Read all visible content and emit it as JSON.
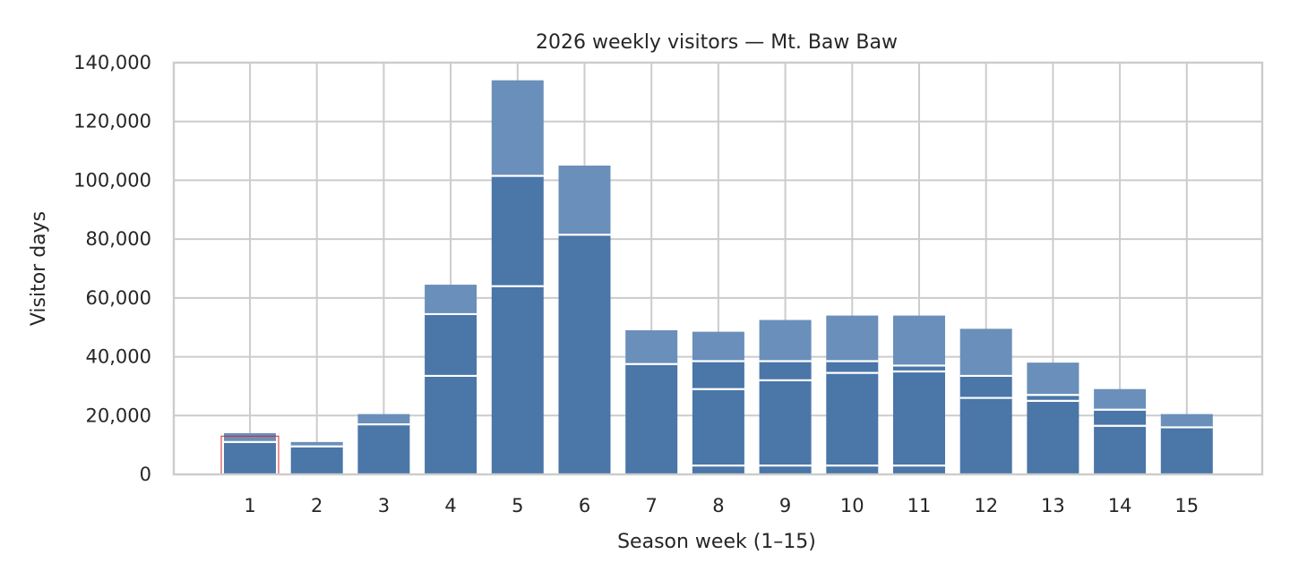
{
  "chart_data": {
    "type": "bar",
    "title": "2026 weekly visitors — Mt. Baw Baw",
    "xlabel": "Season week (1–15)",
    "ylabel": "Visitor days",
    "categories": [
      "1",
      "2",
      "3",
      "4",
      "5",
      "6",
      "7",
      "8",
      "9",
      "10",
      "11",
      "12",
      "13",
      "14",
      "15"
    ],
    "values": [
      14000,
      11000,
      20500,
      64500,
      134000,
      105000,
      49000,
      48500,
      52500,
      54000,
      54000,
      49500,
      38000,
      29000,
      20500
    ],
    "segment_boundaries": [
      [
        11000
      ],
      [
        9500
      ],
      [
        17000
      ],
      [
        33500,
        54500
      ],
      [
        64000,
        101500
      ],
      [
        81500
      ],
      [
        37500
      ],
      [
        3000,
        29000,
        38500
      ],
      [
        3000,
        32000,
        38500
      ],
      [
        3000,
        34500,
        38500
      ],
      [
        3000,
        35000,
        37000
      ],
      [
        26000,
        33500
      ],
      [
        25000,
        27000
      ],
      [
        16500,
        22000
      ],
      [
        16000
      ]
    ],
    "ylim": [
      0,
      140000
    ],
    "yticks": [
      0,
      20000,
      40000,
      60000,
      80000,
      100000,
      120000,
      140000
    ],
    "ytick_labels": [
      "0",
      "20,000",
      "40,000",
      "60,000",
      "80,000",
      "100,000",
      "120,000",
      "140,000"
    ],
    "grid": true,
    "colors": {
      "bar": "#4a76a8",
      "bar_top": "#6a8fba",
      "segment_line": "#ffffff",
      "highlight_outline": "#d62728",
      "grid": "#cccccc",
      "text": "#262626"
    },
    "highlighted_category": "1"
  }
}
